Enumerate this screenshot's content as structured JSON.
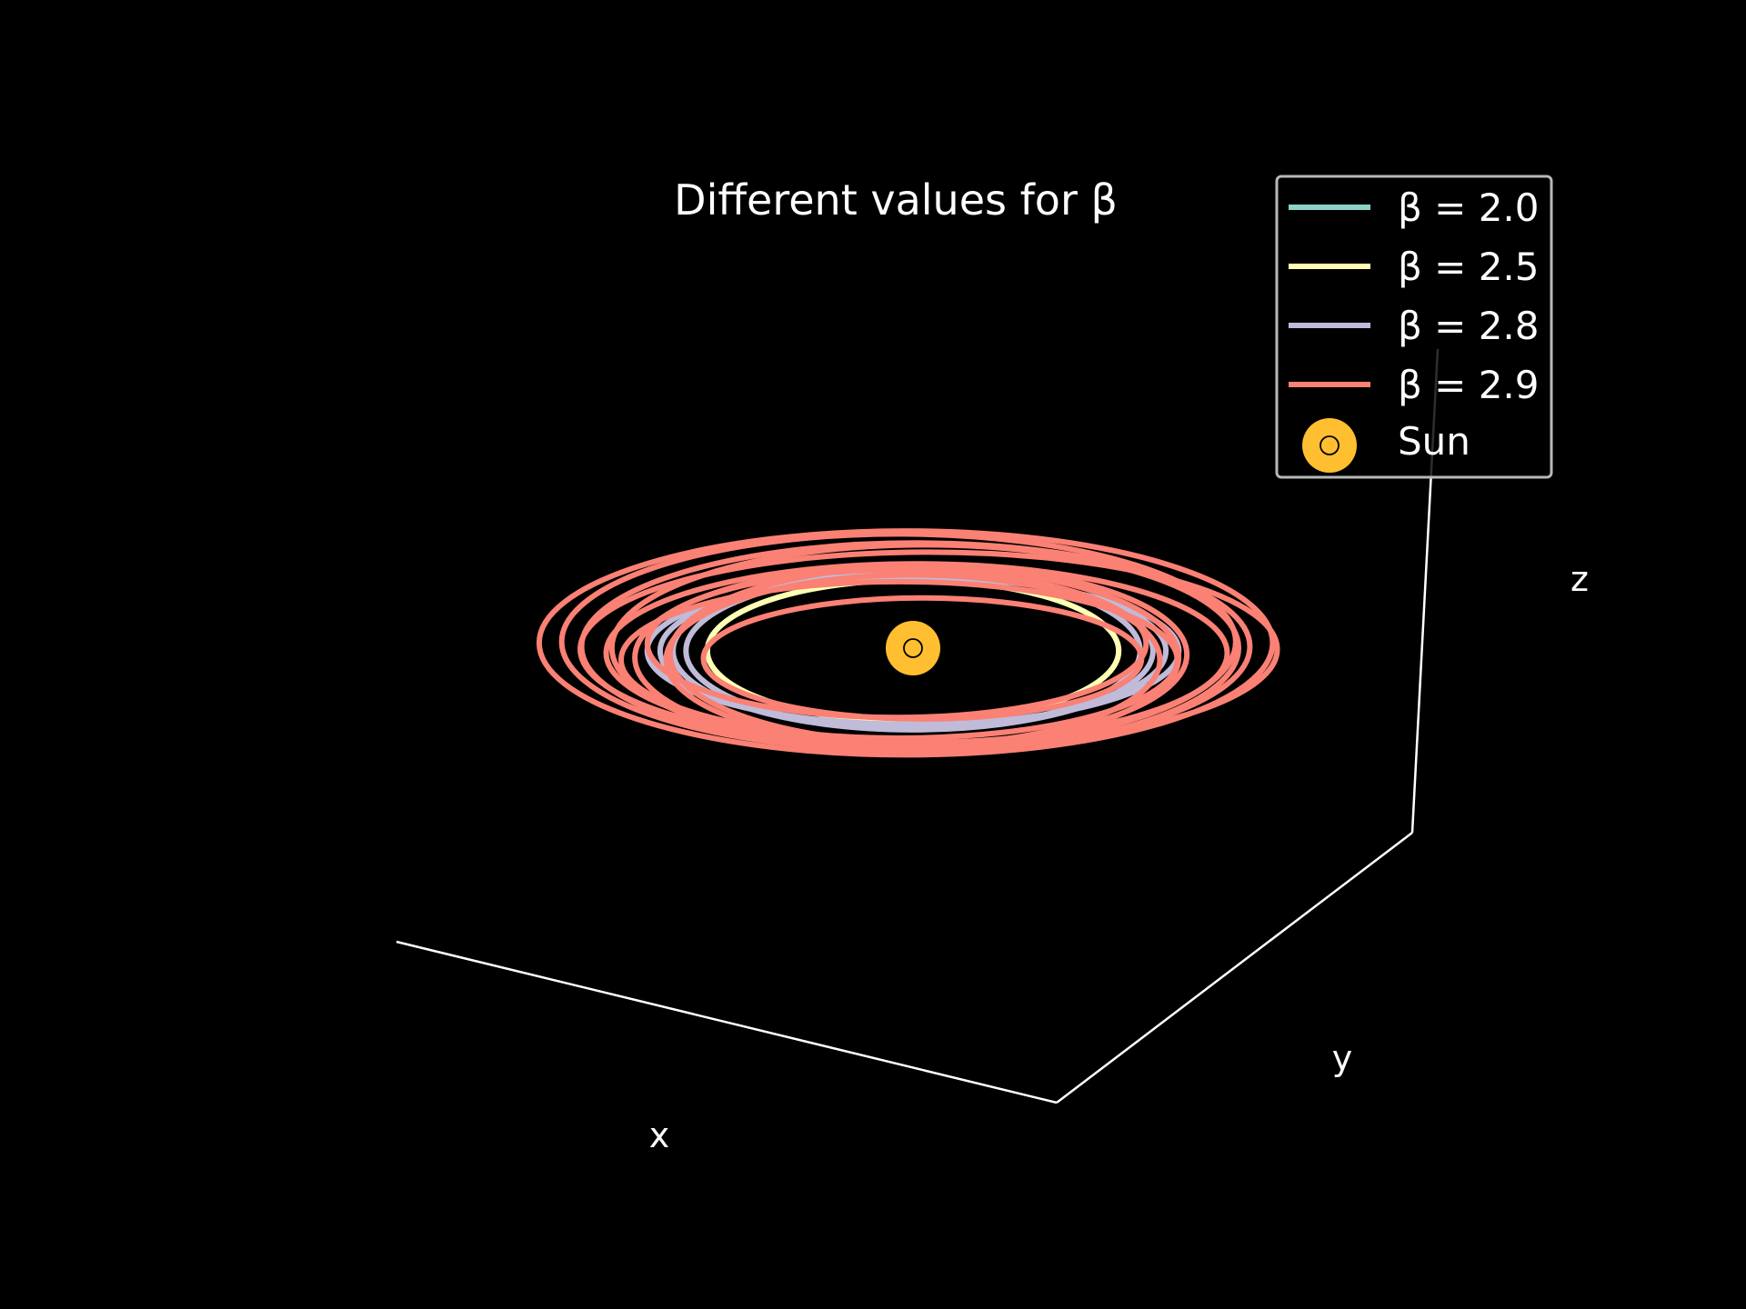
{
  "chart_data": {
    "type": "line",
    "projection": "3d",
    "title": "Different values for β",
    "xlabel": "x",
    "ylabel": "y",
    "zlabel": "z",
    "grid": false,
    "legend_placement": "top-right",
    "background_color": "#000000",
    "series": [
      {
        "name": "β = 2.0",
        "color": "#8dd3c7",
        "semi_major_axis": 1.0,
        "z": 0,
        "orbits": 1
      },
      {
        "name": "β = 2.5",
        "color": "#feffb3",
        "semi_major_axis": 1.0,
        "z": 0,
        "orbits": 1
      },
      {
        "name": "β = 2.8",
        "color": "#bfbbd9",
        "semi_major_axis": 1.05,
        "z": 0,
        "orbits": 4
      },
      {
        "name": "β = 2.9",
        "color": "#fa8174",
        "semi_major_axis": 1.3,
        "z": 0,
        "orbits": 12
      }
    ],
    "markers": [
      {
        "name": "Sun",
        "symbol": "☉",
        "x": 0,
        "y": 0,
        "z": 0,
        "color": "#ffbf30"
      }
    ]
  }
}
